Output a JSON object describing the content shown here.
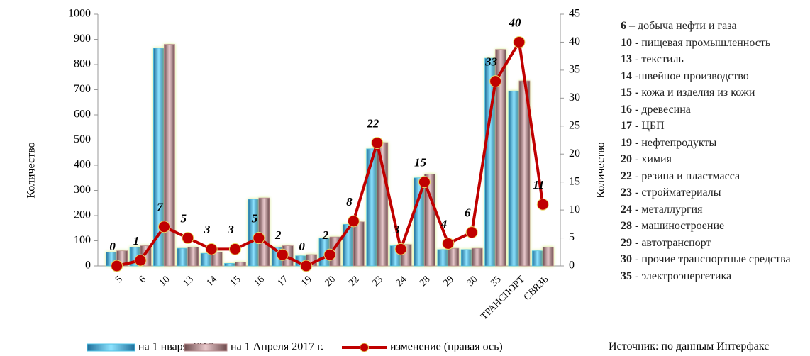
{
  "chart_data": {
    "type": "bar",
    "categories": [
      "5",
      "6",
      "10",
      "13",
      "14",
      "15",
      "16",
      "17",
      "19",
      "20",
      "22",
      "23",
      "24",
      "28",
      "29",
      "30",
      "35",
      "ТРАНСПОРТ",
      "СВЯЗЬ"
    ],
    "series": [
      {
        "name": "на 1 нваря 2017 г.",
        "color": "#4fc3e6",
        "values": [
          55,
          75,
          865,
          70,
          50,
          10,
          265,
          75,
          40,
          110,
          165,
          465,
          80,
          350,
          65,
          65,
          825,
          695,
          60
        ]
      },
      {
        "name": "на 1 Апреля 2017 г.",
        "color": "#b98b8e",
        "values": [
          60,
          80,
          880,
          75,
          55,
          15,
          270,
          80,
          45,
          115,
          175,
          490,
          85,
          365,
          70,
          70,
          860,
          735,
          75
        ]
      },
      {
        "name": "изменение (правая ось)",
        "color": "#c00000",
        "type": "line",
        "axis": "y2",
        "values": [
          0,
          1,
          7,
          5,
          3,
          3,
          5,
          2,
          0,
          2,
          8,
          22,
          3,
          15,
          4,
          6,
          33,
          40,
          11
        ]
      }
    ],
    "ylabel": "Количество",
    "y2label": "Количество",
    "ylim": [
      0,
      1000
    ],
    "yticks": [
      0,
      100,
      200,
      300,
      400,
      500,
      600,
      700,
      800,
      900,
      1000
    ],
    "y2lim": [
      0,
      45
    ],
    "y2ticks": [
      0,
      5,
      10,
      15,
      20,
      25,
      30,
      35,
      40,
      45
    ],
    "notes": [
      {
        "code": "6",
        "text": " – добыча нефти и газа"
      },
      {
        "code": "10",
        "text": " - пищевая промышленность"
      },
      {
        "code": "13",
        "text": " - текстиль"
      },
      {
        "code": "14",
        "text": " -швейное производство"
      },
      {
        "code": "15 -",
        "text": " кожа и изделия из кожи"
      },
      {
        "code": "16",
        "text": " - древесина"
      },
      {
        "code": "17",
        "text": " - ЦБП"
      },
      {
        "code": "19",
        "text": " - нефтепродукты"
      },
      {
        "code": "20",
        "text": " - химия"
      },
      {
        "code": "22",
        "text": " - резина и пластмасса"
      },
      {
        "code": "23",
        "text": " - стройматериалы"
      },
      {
        "code": "24",
        "text": " - металлургия"
      },
      {
        "code": "28",
        "text": " - машиностроение"
      },
      {
        "code": "29",
        "text": " - автотранспорт"
      },
      {
        "code": "30",
        "text": " - прочие транспортные средства"
      },
      {
        "code": "35",
        "text": " - электроэнергетика"
      }
    ],
    "source": "Источник: по данным Интерфакс"
  }
}
